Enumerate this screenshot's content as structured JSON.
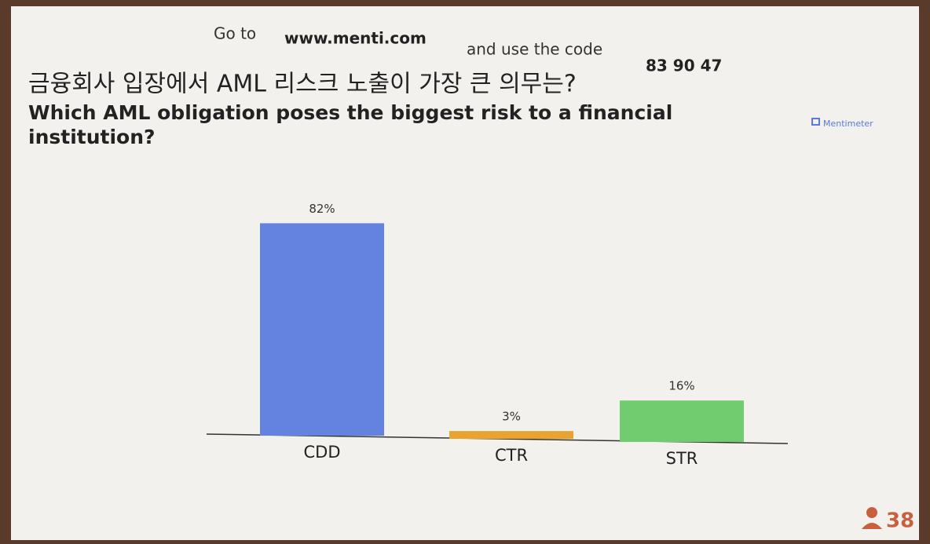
{
  "header": {
    "instruction": "Go to",
    "url": "www.menti.com",
    "instruction_middle": "and use the code",
    "code": "83 90 47",
    "brand": "Mentimeter"
  },
  "chart_data": {
    "type": "bar",
    "title": "금융회사 입장에서 AML 리스크 노출이 가장 큰 의무는?",
    "subtitle": "Which AML obligation poses the biggest risk to a financial institution?",
    "categories": [
      "CDD",
      "CTR",
      "STR"
    ],
    "values": [
      82,
      3,
      16
    ],
    "value_labels": [
      "82%",
      "3%",
      "16%"
    ],
    "colors": [
      "#6482e0",
      "#e8a432",
      "#70cc6e"
    ]
  },
  "participants": 38
}
